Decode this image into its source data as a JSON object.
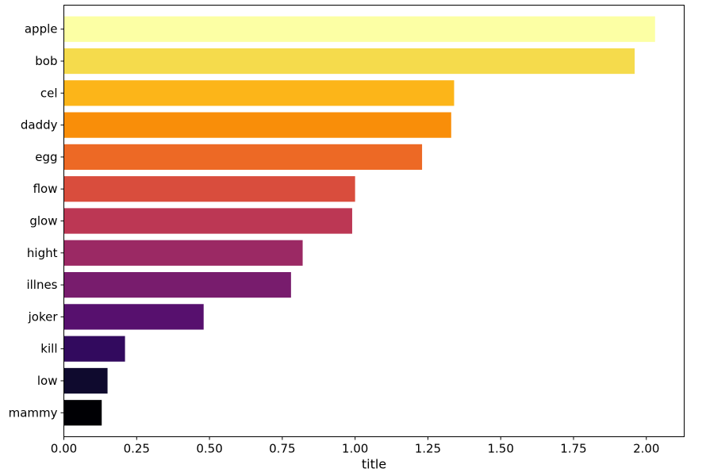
{
  "chart_data": {
    "type": "bar",
    "orientation": "horizontal",
    "title": "",
    "xlabel": "title",
    "ylabel": "",
    "categories": [
      "apple",
      "bob",
      "cel",
      "daddy",
      "egg",
      "flow",
      "glow",
      "hight",
      "illnes",
      "joker",
      "kill",
      "low",
      "mammy"
    ],
    "values": [
      2.03,
      1.96,
      1.34,
      1.33,
      1.23,
      1.0,
      0.99,
      0.82,
      0.78,
      0.48,
      0.21,
      0.15,
      0.13
    ],
    "colors": [
      "#fcffa4",
      "#f5db4c",
      "#fcb519",
      "#f98e09",
      "#ed6925",
      "#d94d3d",
      "#bc3754",
      "#9b2964",
      "#781c6d",
      "#57106e",
      "#320a5e",
      "#0f0a2e",
      "#000004"
    ],
    "xlim": [
      0,
      2.13
    ],
    "xticks": [
      0.0,
      0.25,
      0.5,
      0.75,
      1.0,
      1.25,
      1.5,
      1.75,
      2.0
    ],
    "xtick_labels": [
      "0.00",
      "0.25",
      "0.50",
      "0.75",
      "1.00",
      "1.25",
      "1.50",
      "1.75",
      "2.00"
    ],
    "grid": false,
    "legend": "none",
    "colormap": "inferno"
  }
}
